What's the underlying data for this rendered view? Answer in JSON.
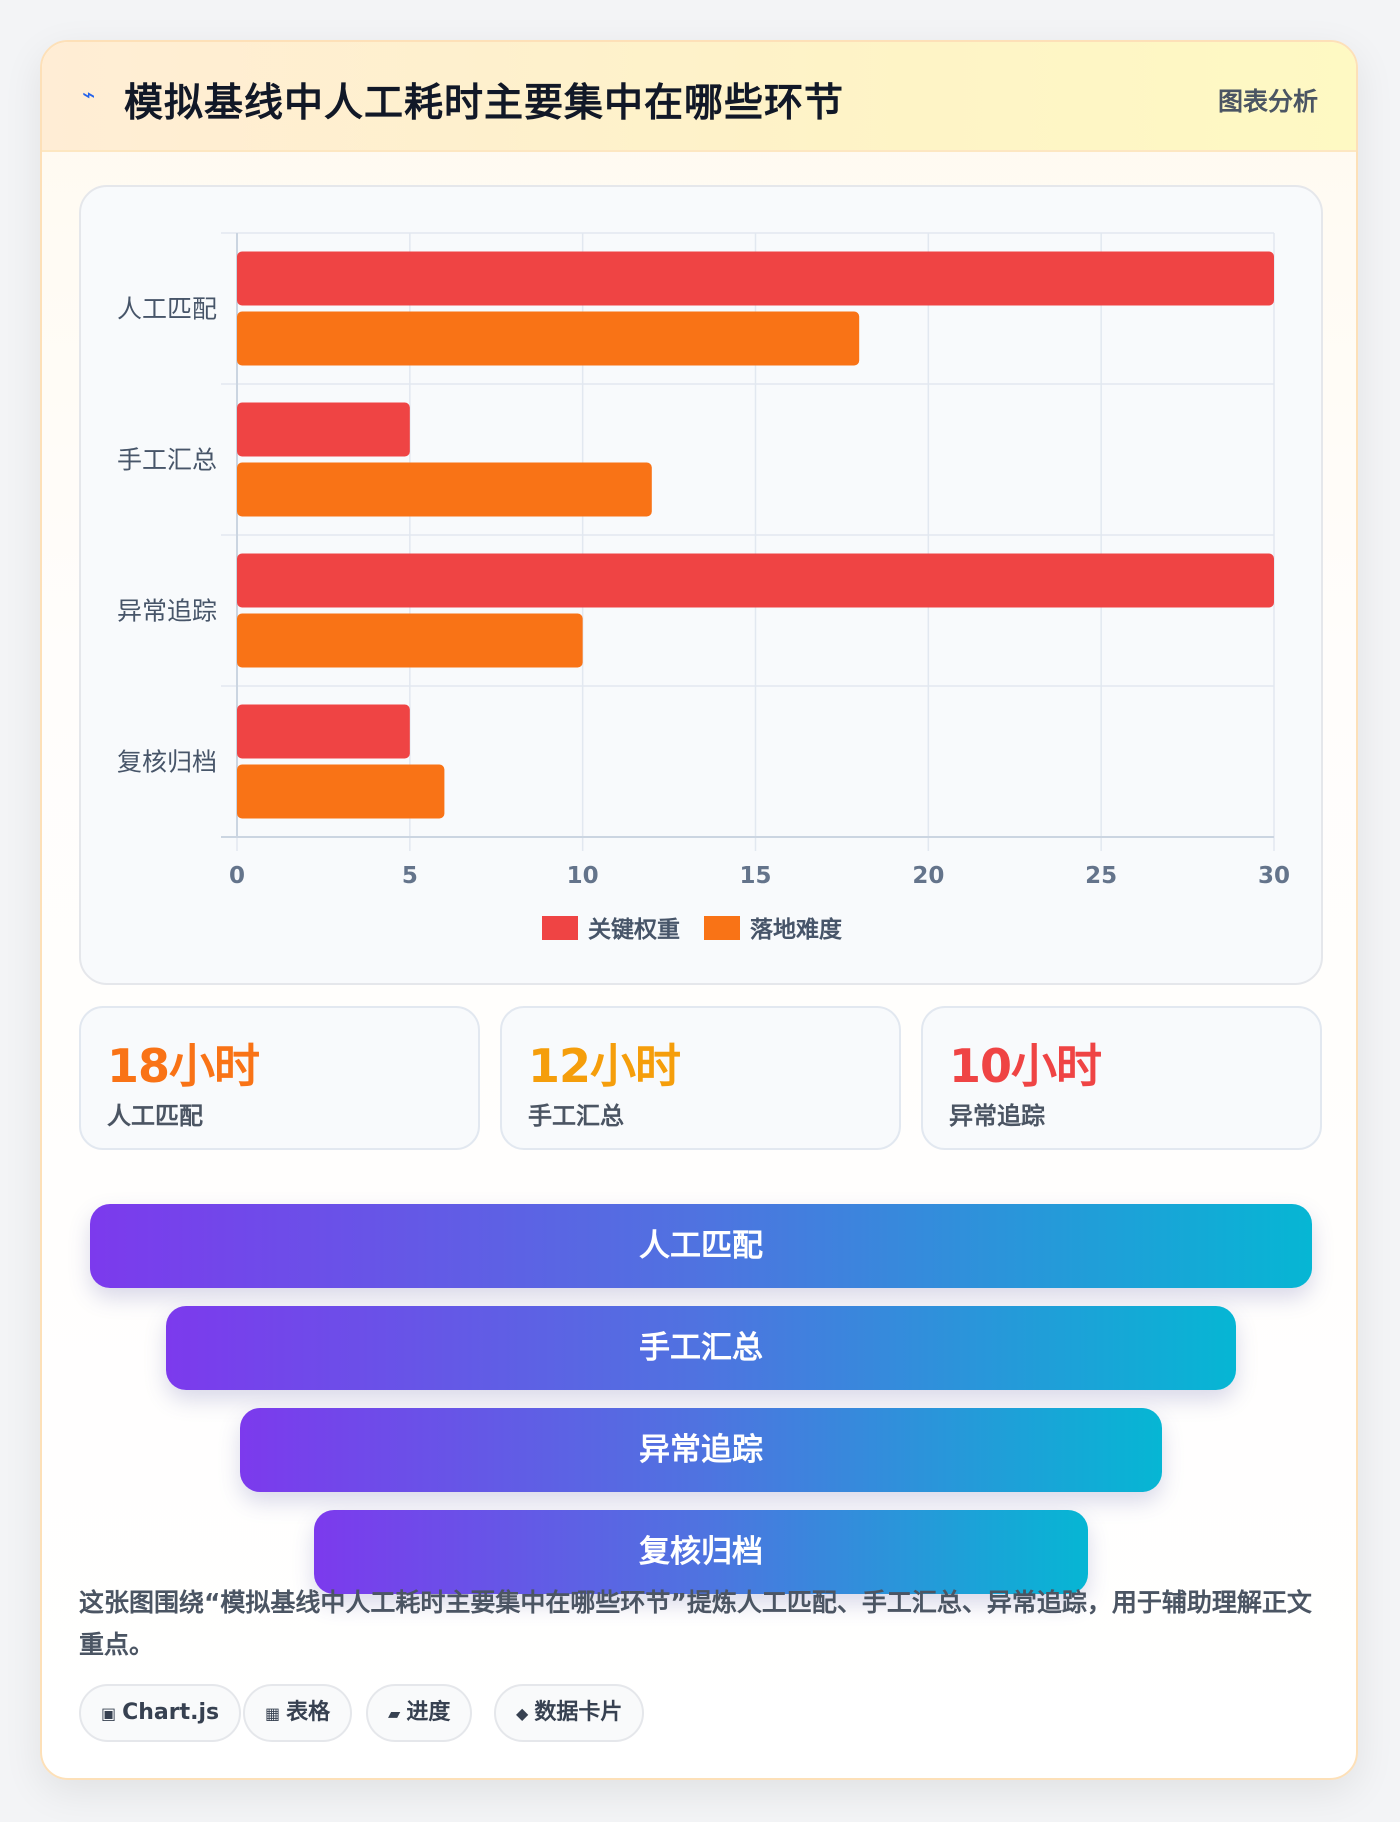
{
  "header": {
    "icon": "lightning-icon",
    "title": "模拟基线中人工耗时主要集中在哪些环节",
    "tag": "图表分析"
  },
  "chart_data": {
    "type": "bar",
    "orientation": "horizontal",
    "categories": [
      "人工匹配",
      "手工汇总",
      "异常追踪",
      "复核归档"
    ],
    "series": [
      {
        "name": "关键权重",
        "color": "#ef4444",
        "values": [
          30,
          5,
          30,
          5
        ]
      },
      {
        "name": "落地难度",
        "color": "#f97316",
        "values": [
          18,
          12,
          10,
          6
        ]
      }
    ],
    "xlim": [
      0,
      30
    ],
    "xticks": [
      "0",
      "5",
      "10",
      "15",
      "20",
      "25",
      "30"
    ],
    "grid": true,
    "legend": "bottom"
  },
  "stats": [
    {
      "value": "18小时",
      "label": "人工匹配",
      "color": "#f97316"
    },
    {
      "value": "12小时",
      "label": "手工汇总",
      "color": "#f59e0b"
    },
    {
      "value": "10小时",
      "label": "异常追踪",
      "color": "#ef4444"
    }
  ],
  "funnel": [
    "人工匹配",
    "手工汇总",
    "异常追踪",
    "复核归档"
  ],
  "summary": "这张图围绕“模拟基线中人工耗时主要集中在哪些环节”提炼人工匹配、手工汇总、异常追踪，用于辅助理解正文重点。",
  "tags": [
    {
      "icon": "chip-icon",
      "glyph": "▣",
      "label": "Chart.js"
    },
    {
      "icon": "table-icon",
      "glyph": "▦",
      "label": "表格"
    },
    {
      "icon": "progress-icon",
      "glyph": "▰",
      "label": "进度"
    },
    {
      "icon": "diamond-icon",
      "glyph": "◆",
      "label": "数据卡片"
    }
  ]
}
